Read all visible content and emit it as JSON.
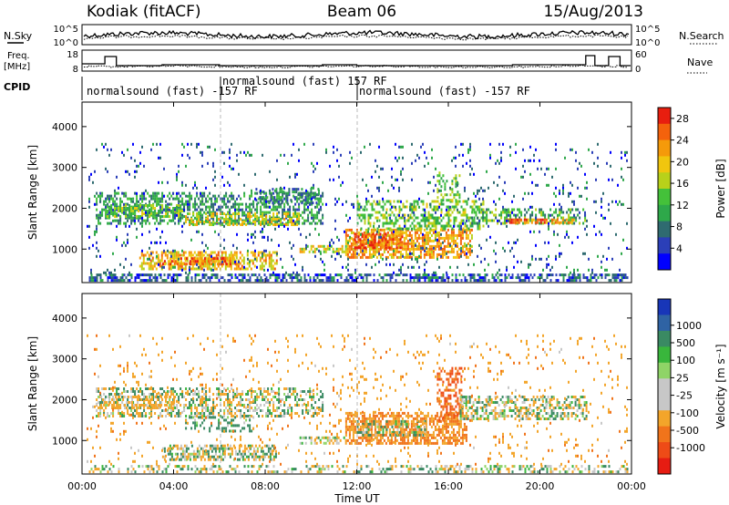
{
  "header": {
    "station": "Kodiak (fitACF)",
    "beam": "Beam 06",
    "date": "15/Aug/2013"
  },
  "summary": {
    "nsky_label": "N.Sky",
    "nsearch_label": "N.Search",
    "freq_label_line1": "Freq.",
    "freq_label_line2": "[MHz]",
    "nave_label": "Nave",
    "cpid_label": "CPID",
    "noise_ticks_left": [
      "10^5",
      "10^0"
    ],
    "noise_ticks_right": [
      "10^5",
      "10^0"
    ],
    "freq_ticks_left": [
      "18",
      "8"
    ],
    "nave_ticks_right": [
      "60",
      "0"
    ],
    "cpid_segments": [
      {
        "label": "normalsound (fast) -157 RF",
        "start_h": 0.0
      },
      {
        "label": "normalsound (fast) 157 RF",
        "start_h": 6.0
      },
      {
        "label": "normalsound (fast) -157 RF",
        "start_h": 12.0
      }
    ]
  },
  "axes": {
    "ylabel": "Slant Range [km]",
    "xlabel": "Time UT",
    "yticks": [
      "1000",
      "2000",
      "3000",
      "4000"
    ],
    "xticks": [
      "00:00",
      "04:00",
      "08:00",
      "12:00",
      "16:00",
      "20:00",
      "00:00"
    ]
  },
  "power_colorbar": {
    "label": "Power [dB]",
    "ticks": [
      "4",
      "8",
      "12",
      "16",
      "20",
      "24",
      "28"
    ],
    "colors": [
      "#0000ff",
      "#2b3fb8",
      "#2f6b70",
      "#2ea84a",
      "#44c13a",
      "#b8d11a",
      "#f1c60e",
      "#f59a0a",
      "#f4620c",
      "#e81e0f"
    ]
  },
  "velocity_colorbar": {
    "label": "Velocity [m s⁻¹]",
    "ticks": [
      "1000",
      "500",
      "100",
      "25",
      "-25",
      "-100",
      "-500",
      "-1000"
    ],
    "colors": [
      "#1836b8",
      "#2f63a4",
      "#3a8a63",
      "#39b63c",
      "#8fd467",
      "#c7c7c7",
      "#c7c7c7",
      "#f3a52a",
      "#f1741b",
      "#ee4b17",
      "#e61c12"
    ]
  },
  "chart_data": {
    "type": "heatmap",
    "title": "Kodiak (fitACF) Beam 06 15/Aug/2013",
    "xlabel": "Time UT",
    "ylabel": "Slant Range [km]",
    "xlim": [
      0,
      24
    ],
    "ylim": [
      180,
      4600
    ],
    "x_unit": "hours UT",
    "grid": false,
    "panels": [
      {
        "name": "Power",
        "colorbar_label": "Power [dB]",
        "zlim": [
          0,
          30
        ],
        "regions": [
          {
            "t0": 0.3,
            "t1": 23.8,
            "r0": 200,
            "r1": 400,
            "level": 6,
            "density": 0.55
          },
          {
            "t0": 0.6,
            "t1": 10.5,
            "r0": 1600,
            "r1": 2400,
            "level": 10,
            "density": 0.5
          },
          {
            "t0": 1.0,
            "t1": 4.5,
            "r0": 1800,
            "r1": 2100,
            "level": 14,
            "density": 0.6
          },
          {
            "t0": 4.5,
            "t1": 9.5,
            "r0": 1600,
            "r1": 1900,
            "level": 18,
            "density": 0.5
          },
          {
            "t0": 2.5,
            "t1": 8.5,
            "r0": 500,
            "r1": 950,
            "level": 20,
            "density": 0.6
          },
          {
            "t0": 3.5,
            "t1": 7.0,
            "r0": 600,
            "r1": 800,
            "level": 24,
            "density": 0.6
          },
          {
            "t0": 9.5,
            "t1": 11.5,
            "r0": 900,
            "r1": 1100,
            "level": 18,
            "density": 0.55
          },
          {
            "t0": 11.5,
            "t1": 17.0,
            "r0": 800,
            "r1": 1500,
            "level": 22,
            "density": 0.65
          },
          {
            "t0": 11.8,
            "t1": 14.0,
            "r0": 1000,
            "r1": 1400,
            "level": 26,
            "density": 0.6
          },
          {
            "t0": 12.0,
            "t1": 17.5,
            "r0": 1500,
            "r1": 2200,
            "level": 14,
            "density": 0.45
          },
          {
            "t0": 15.5,
            "t1": 16.5,
            "r0": 2200,
            "r1": 2900,
            "level": 14,
            "density": 0.35
          },
          {
            "t0": 17.0,
            "t1": 22.0,
            "r0": 1600,
            "r1": 2000,
            "level": 12,
            "density": 0.45
          },
          {
            "t0": 18.5,
            "t1": 21.5,
            "r0": 1650,
            "r1": 1750,
            "level": 24,
            "density": 0.7
          },
          {
            "t0": 7.5,
            "t1": 10.3,
            "r0": 2100,
            "r1": 2500,
            "level": 8,
            "density": 0.35
          },
          {
            "t0": 0.2,
            "t1": 23.8,
            "r0": 400,
            "r1": 3600,
            "level": 6,
            "density": 0.06
          }
        ]
      },
      {
        "name": "Velocity",
        "colorbar_label": "Velocity [m s⁻¹]",
        "zlim": [
          -1000,
          1000
        ],
        "regions": [
          {
            "t0": 0.3,
            "t1": 23.8,
            "r0": 200,
            "r1": 400,
            "level": 0,
            "density": 0.35
          },
          {
            "t0": 0.6,
            "t1": 10.5,
            "r0": 1600,
            "r1": 2300,
            "level": 0,
            "density": 0.45
          },
          {
            "t0": 0.8,
            "t1": 4.0,
            "r0": 1800,
            "r1": 2100,
            "level": -150,
            "density": 0.45
          },
          {
            "t0": 4.5,
            "t1": 7.5,
            "r0": 1200,
            "r1": 1600,
            "level": 120,
            "density": 0.35
          },
          {
            "t0": 3.5,
            "t1": 8.5,
            "r0": 550,
            "r1": 900,
            "level": 0,
            "density": 0.55
          },
          {
            "t0": 11.5,
            "t1": 16.8,
            "r0": 900,
            "r1": 1700,
            "level": -300,
            "density": 0.65
          },
          {
            "t0": 12.0,
            "t1": 15.0,
            "r0": 1100,
            "r1": 1500,
            "level": 80,
            "density": 0.35
          },
          {
            "t0": 15.5,
            "t1": 16.6,
            "r0": 1500,
            "r1": 2800,
            "level": -600,
            "density": 0.4
          },
          {
            "t0": 16.5,
            "t1": 22.0,
            "r0": 1500,
            "r1": 2100,
            "level": 0,
            "density": 0.5
          },
          {
            "t0": 9.5,
            "t1": 11.5,
            "r0": 900,
            "r1": 1100,
            "level": 0,
            "density": 0.5
          },
          {
            "t0": 0.2,
            "t1": 23.8,
            "r0": 400,
            "r1": 3600,
            "level": -200,
            "density": 0.05
          }
        ]
      }
    ]
  }
}
